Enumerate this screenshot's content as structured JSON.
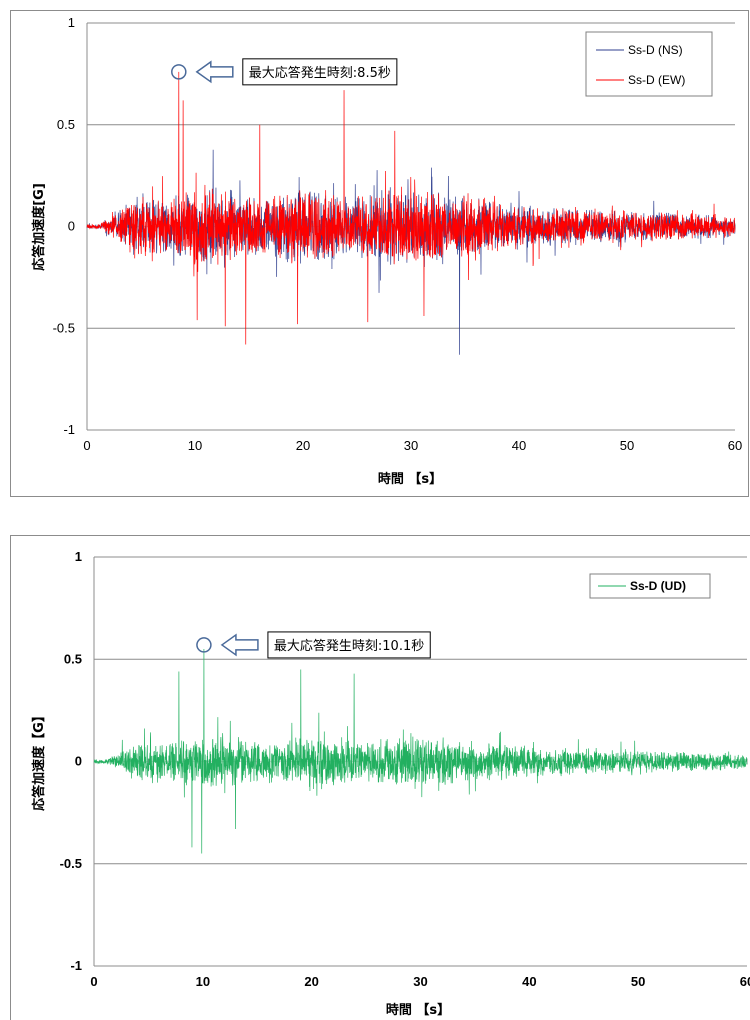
{
  "chart_data": [
    {
      "type": "line",
      "title": "",
      "xlabel": "時間 【s】",
      "ylabel": "応答加速度[G]",
      "xlim": [
        0,
        60
      ],
      "ylim": [
        -1,
        1
      ],
      "x_ticks": [
        "0",
        "10",
        "20",
        "30",
        "40",
        "50",
        "60"
      ],
      "y_ticks": [
        "1",
        "0.5",
        "0",
        "-0.5",
        "-1"
      ],
      "grid": "horizontal",
      "legend_position": "top-right",
      "duration_s": 60,
      "sample_step_s": 0.02,
      "series": [
        {
          "name": "Ss-D (NS)",
          "color": "#2f3f8f"
        },
        {
          "name": "Ss-D (EW)",
          "color": "#ff0000"
        }
      ],
      "peaks": [
        {
          "t": 8.5,
          "value": 0.76,
          "series": 1
        },
        {
          "t": 8.9,
          "value": 0.62,
          "series": 1
        },
        {
          "t": 23.8,
          "value": 0.67,
          "series": 1
        },
        {
          "t": 28.5,
          "value": 0.47,
          "series": 1
        },
        {
          "t": 16.0,
          "value": 0.5,
          "series": 1
        },
        {
          "t": 34.5,
          "value": -0.63,
          "series": 0
        },
        {
          "t": 14.7,
          "value": -0.58,
          "series": 1
        },
        {
          "t": 12.8,
          "value": -0.49,
          "series": 1
        },
        {
          "t": 10.2,
          "value": -0.46,
          "series": 1
        },
        {
          "t": 19.5,
          "value": -0.48,
          "series": 1
        },
        {
          "t": 26.0,
          "value": -0.47,
          "series": 1
        },
        {
          "t": 31.2,
          "value": -0.44,
          "series": 1
        }
      ],
      "annotation": {
        "text": "最大応答発生時刻:8.5秒",
        "t": 8.5,
        "value": 0.76
      }
    },
    {
      "type": "line",
      "title": "",
      "xlabel": "時間 【s】",
      "ylabel": "応答加速度【G】",
      "xlim": [
        0,
        60
      ],
      "ylim": [
        -1,
        1
      ],
      "x_ticks": [
        "0",
        "10",
        "20",
        "30",
        "40",
        "50",
        "60"
      ],
      "y_ticks": [
        "1",
        "0.5",
        "0",
        "-0.5",
        "-1"
      ],
      "grid": "horizontal",
      "legend_position": "top-right",
      "duration_s": 60,
      "sample_step_s": 0.02,
      "series": [
        {
          "name": "Ss-D (UD)",
          "color": "#22b060"
        }
      ],
      "peaks": [
        {
          "t": 10.1,
          "value": 0.55,
          "series": 0
        },
        {
          "t": 19.0,
          "value": 0.45,
          "series": 0
        },
        {
          "t": 23.9,
          "value": 0.43,
          "series": 0
        },
        {
          "t": 7.8,
          "value": 0.44,
          "series": 0
        },
        {
          "t": 9.9,
          "value": -0.45,
          "series": 0
        },
        {
          "t": 9.0,
          "value": -0.42,
          "series": 0
        },
        {
          "t": 13.0,
          "value": -0.33,
          "series": 0
        }
      ],
      "annotation": {
        "text": "最大応答発生時刻:10.1秒",
        "t": 10.1,
        "value": 0.57
      }
    }
  ]
}
